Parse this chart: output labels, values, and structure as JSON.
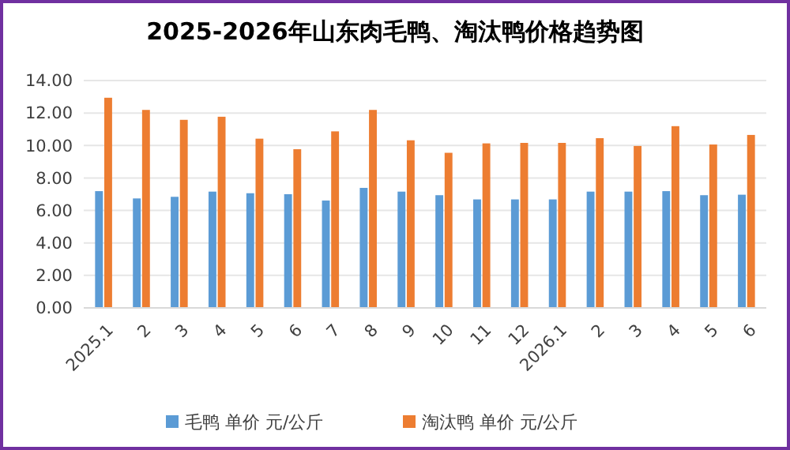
{
  "chart_data": {
    "type": "bar",
    "title": "2025-2026年山东肉毛鸭、淘汰鸭价格趋势图",
    "categories": [
      "2025.1",
      "2",
      "3",
      "4",
      "5",
      "6",
      "7",
      "8",
      "9",
      "10",
      "11",
      "12",
      "2026.1",
      "2",
      "3",
      "4",
      "5",
      "6"
    ],
    "series": [
      {
        "name": "毛鸭 单价 元/公斤",
        "color": "#5b9bd5",
        "values": [
          7.19,
          6.74,
          6.84,
          7.16,
          7.06,
          7.0,
          6.61,
          7.39,
          7.16,
          6.94,
          6.68,
          6.68,
          6.68,
          7.16,
          7.16,
          7.19,
          6.94,
          6.97
        ]
      },
      {
        "name": "淘汰鸭 单价 元/公斤",
        "color": "#ed7d31",
        "values": [
          12.94,
          12.19,
          11.58,
          11.77,
          10.42,
          9.77,
          10.87,
          12.19,
          10.32,
          9.55,
          10.13,
          10.16,
          10.16,
          10.45,
          9.97,
          11.19,
          10.06,
          10.65
        ]
      }
    ],
    "ylim": [
      0,
      14
    ],
    "yticks": [
      {
        "value": 0,
        "label": "0.00"
      },
      {
        "value": 2,
        "label": "2.00"
      },
      {
        "value": 4,
        "label": "4.00"
      },
      {
        "value": 6,
        "label": "6.00"
      },
      {
        "value": 8,
        "label": "8.00"
      },
      {
        "value": 10,
        "label": "10.00"
      },
      {
        "value": 12,
        "label": "12.00"
      },
      {
        "value": 14,
        "label": "14.00"
      }
    ],
    "grid": "y",
    "legend": "bottom"
  }
}
